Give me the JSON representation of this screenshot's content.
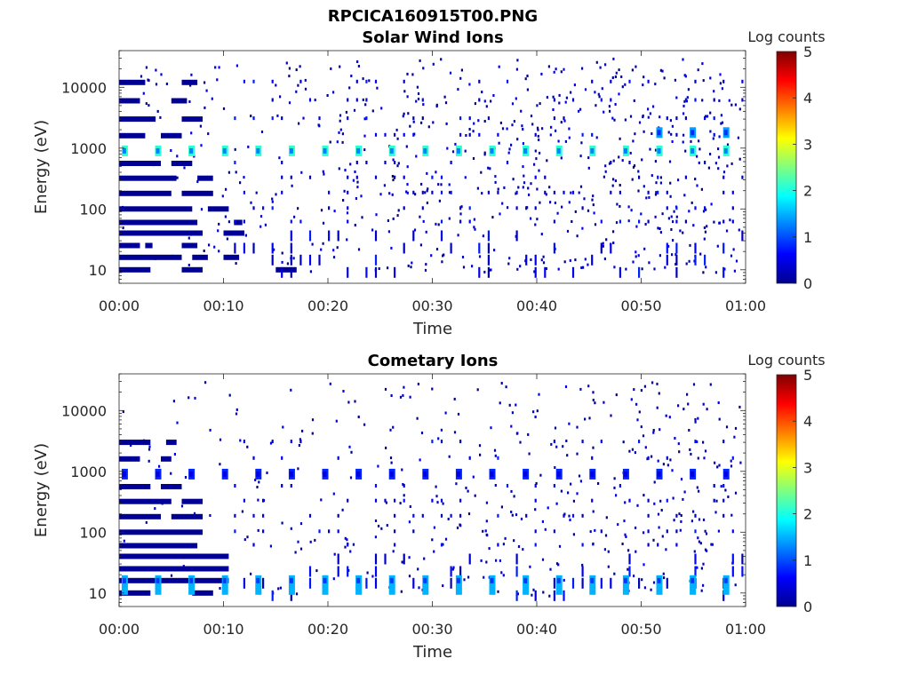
{
  "figure": {
    "title": "RPCICA160915T00.PNG"
  },
  "colorbar": {
    "label": "Log counts",
    "ticks": [
      "0",
      "1",
      "2",
      "3",
      "4",
      "5"
    ],
    "range": [
      0,
      5
    ],
    "colormap": "jet"
  },
  "chart_data": [
    {
      "type": "heatmap",
      "title": "Solar Wind Ions",
      "xlabel": "Time",
      "ylabel": "Energy (eV)",
      "xticks": [
        "00:00",
        "00:10",
        "00:20",
        "00:30",
        "00:40",
        "00:50",
        "01:00"
      ],
      "xlim_minutes": [
        0,
        60
      ],
      "yscale": "log",
      "ylim": [
        6,
        40000
      ],
      "yticks": [
        "10",
        "100",
        "1000",
        "10000"
      ],
      "clim": [
        0,
        5
      ],
      "series": [
        {
          "name": "pulses at ~900 eV",
          "energy": 900,
          "level": 2.1,
          "start_minute": 0.5,
          "period_minutes": 3.2
        },
        {
          "name": "pulses at ~1800 eV",
          "energy": 1800,
          "level": 1.4,
          "start_minute": 51.7,
          "period_minutes": 3.2
        }
      ],
      "rows": [
        {
          "energy": 10,
          "segments": [
            [
              0,
              3
            ],
            [
              6,
              8
            ],
            [
              15,
              17
            ]
          ]
        },
        {
          "energy": 16,
          "segments": [
            [
              0,
              6
            ],
            [
              7,
              8.5
            ],
            [
              10,
              11.5
            ]
          ]
        },
        {
          "energy": 25,
          "segments": [
            [
              0,
              2
            ],
            [
              2.5,
              3.2
            ],
            [
              6,
              7.5
            ]
          ]
        },
        {
          "energy": 40,
          "segments": [
            [
              0,
              8
            ],
            [
              10,
              12
            ]
          ]
        },
        {
          "energy": 60,
          "segments": [
            [
              0,
              7.5
            ],
            [
              11,
              11.8
            ]
          ]
        },
        {
          "energy": 100,
          "segments": [
            [
              0,
              7
            ],
            [
              8.5,
              10.5
            ]
          ]
        },
        {
          "energy": 180,
          "segments": [
            [
              0,
              5
            ],
            [
              6,
              9
            ]
          ]
        },
        {
          "energy": 320,
          "segments": [
            [
              0,
              5.5
            ],
            [
              7.5,
              9
            ]
          ]
        },
        {
          "energy": 560,
          "segments": [
            [
              0,
              4
            ],
            [
              5,
              7
            ]
          ]
        },
        {
          "energy": 1600,
          "segments": [
            [
              0,
              2.5
            ],
            [
              4,
              6
            ]
          ]
        },
        {
          "energy": 3000,
          "segments": [
            [
              0,
              3.5
            ],
            [
              6,
              8
            ]
          ]
        },
        {
          "energy": 6000,
          "segments": [
            [
              0,
              2
            ],
            [
              5,
              6.5
            ]
          ]
        },
        {
          "energy": 12000,
          "segments": [
            [
              0,
              2.5
            ],
            [
              6,
              7.5
            ]
          ]
        }
      ]
    },
    {
      "type": "heatmap",
      "title": "Cometary Ions",
      "xlabel": "Time",
      "ylabel": "Energy (eV)",
      "xticks": [
        "00:00",
        "00:10",
        "00:20",
        "00:30",
        "00:40",
        "00:50",
        "01:00"
      ],
      "xlim_minutes": [
        0,
        60
      ],
      "yscale": "log",
      "ylim": [
        6,
        40000
      ],
      "yticks": [
        "10",
        "100",
        "1000",
        "10000"
      ],
      "clim": [
        0,
        5
      ],
      "series": [
        {
          "name": "pulses at ~900 eV",
          "energy": 900,
          "level": 0.8,
          "start_minute": 0.5,
          "period_minutes": 3.2
        },
        {
          "name": "pulses at ~16 eV",
          "energy": 16,
          "level": 1.5,
          "start_minute": 0.5,
          "period_minutes": 3.2
        }
      ],
      "rows": [
        {
          "energy": 10,
          "segments": [
            [
              0,
              3
            ],
            [
              7,
              9
            ]
          ]
        },
        {
          "energy": 16,
          "segments": [
            [
              0,
              10.5
            ]
          ]
        },
        {
          "energy": 25,
          "segments": [
            [
              0,
              10.5
            ]
          ]
        },
        {
          "energy": 40,
          "segments": [
            [
              0,
              10.5
            ]
          ]
        },
        {
          "energy": 60,
          "segments": [
            [
              0,
              7.5
            ]
          ]
        },
        {
          "energy": 100,
          "segments": [
            [
              0,
              8
            ]
          ]
        },
        {
          "energy": 180,
          "segments": [
            [
              0,
              4
            ],
            [
              5,
              8
            ]
          ]
        },
        {
          "energy": 320,
          "segments": [
            [
              0,
              5
            ],
            [
              6,
              8
            ]
          ]
        },
        {
          "energy": 560,
          "segments": [
            [
              0,
              3
            ],
            [
              4,
              6
            ]
          ]
        },
        {
          "energy": 1600,
          "segments": [
            [
              0,
              2
            ],
            [
              4,
              5
            ]
          ]
        },
        {
          "energy": 3000,
          "segments": [
            [
              0,
              3
            ],
            [
              4.5,
              5.5
            ]
          ]
        }
      ]
    }
  ]
}
